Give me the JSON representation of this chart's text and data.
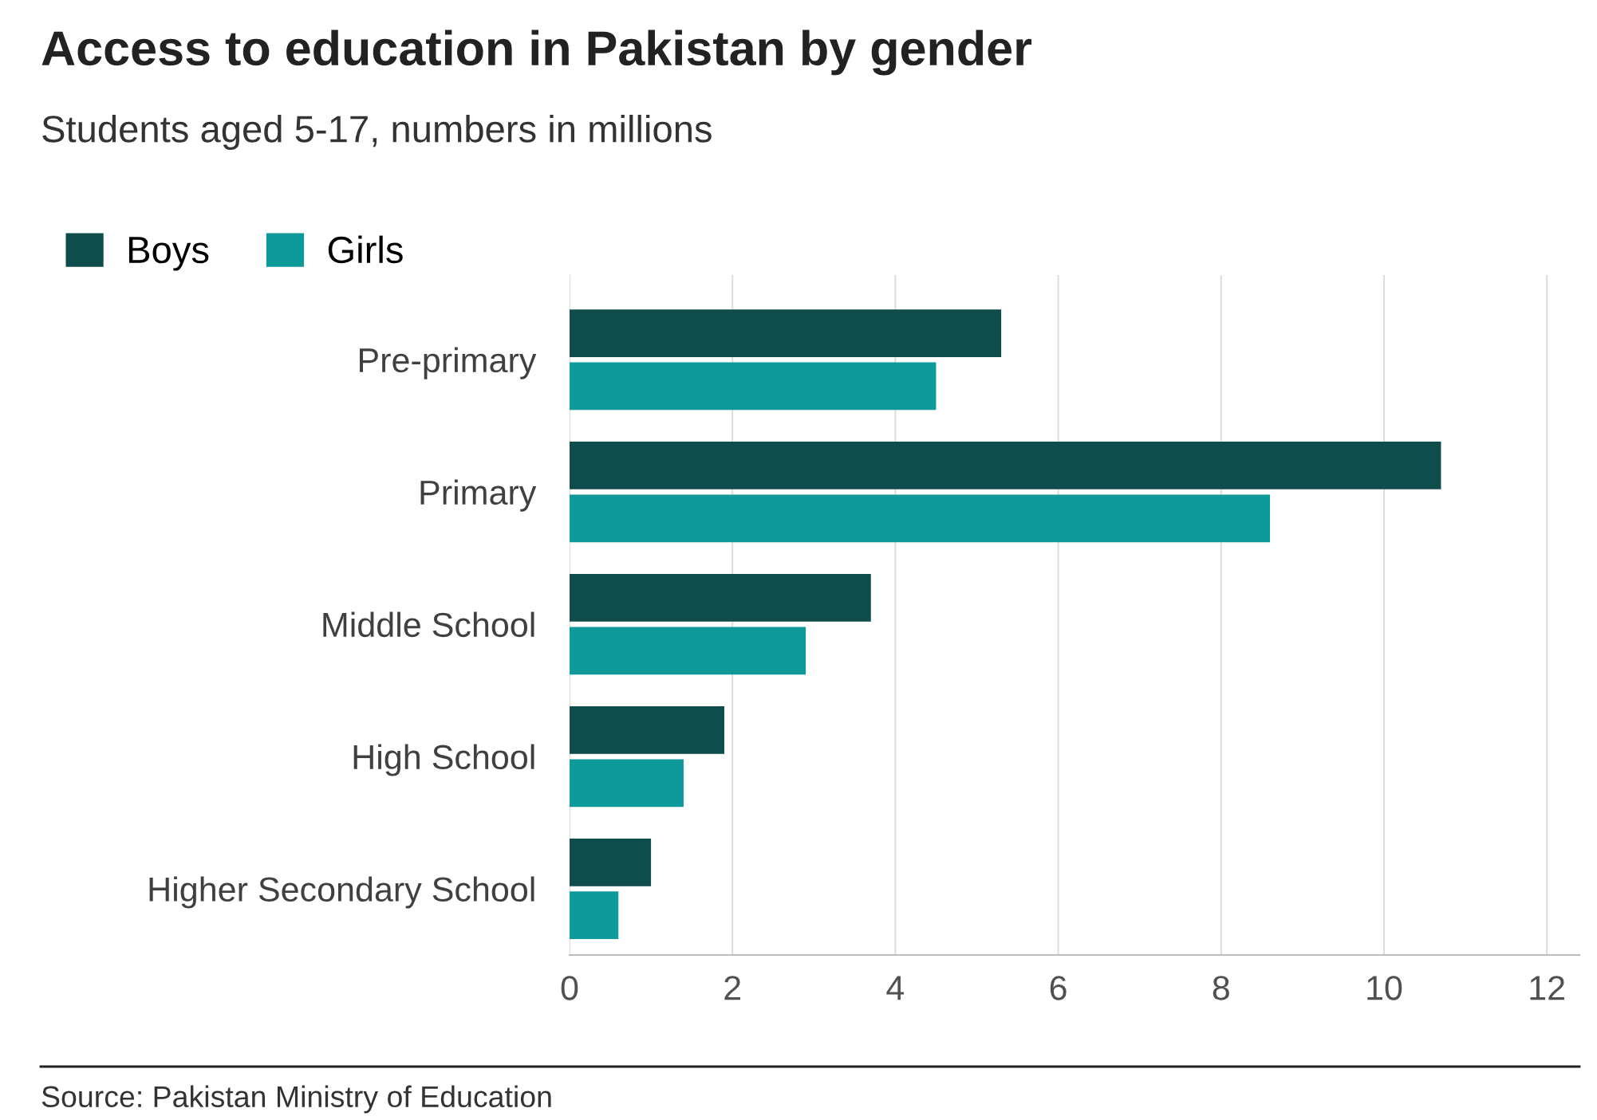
{
  "chart_data": {
    "type": "bar",
    "orientation": "horizontal",
    "title": "Access to education in Pakistan by gender",
    "subtitle": "Students aged 5-17, numbers in millions",
    "categories": [
      "Pre-primary",
      "Primary",
      "Middle School",
      "High School",
      "Higher Secondary School"
    ],
    "series": [
      {
        "name": "Boys",
        "color": "#0f4c4c",
        "values": [
          5.3,
          10.7,
          3.7,
          1.9,
          1.0
        ]
      },
      {
        "name": "Girls",
        "color": "#0e9a9a",
        "values": [
          4.5,
          8.6,
          2.9,
          1.4,
          0.6
        ]
      }
    ],
    "xlim": [
      0,
      12.4
    ],
    "xticks": [
      0,
      2,
      4,
      6,
      8,
      10,
      12
    ],
    "grid": "x",
    "legend": "top left",
    "annotations": [
      "Source: Pakistan Ministry of Education"
    ]
  }
}
